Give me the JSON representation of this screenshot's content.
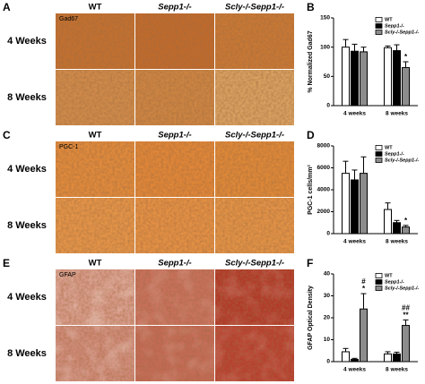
{
  "panels": [
    {
      "label": "A",
      "stain": "Gad67",
      "columns": [
        "WT",
        "Sepp1-/-",
        "Scly-/-Sepp1-/-"
      ],
      "rows": [
        "4 Weeks",
        "8 Weeks"
      ]
    },
    {
      "label": "C",
      "stain": "PGC-1",
      "columns": [
        "WT",
        "Sepp1-/-",
        "Scly-/-Sepp1-/-"
      ],
      "rows": [
        "4 Weeks",
        "8 Weeks"
      ]
    },
    {
      "label": "E",
      "stain": "GFAP",
      "columns": [
        "WT",
        "Sepp1-/-",
        "Scly-/-Sepp1-/-"
      ],
      "rows": [
        "4 Weeks",
        "8 Weeks"
      ]
    }
  ],
  "chart_data": [
    {
      "type": "bar",
      "panel_label": "B",
      "ylabel": "% Normalized Gad67",
      "categories": [
        "4 weeks",
        "8 weeks"
      ],
      "ylim": [
        0,
        150
      ],
      "yticks": [
        0,
        50,
        100,
        150
      ],
      "legend": "upper right",
      "series": [
        {
          "name": "WT",
          "color": "#ffffff",
          "values": [
            100,
            99
          ],
          "errors": [
            13,
            3
          ],
          "annotations": [
            null,
            null
          ]
        },
        {
          "name": "Sepp1-/-",
          "color": "#000000",
          "values": [
            93,
            94
          ],
          "errors": [
            12,
            10
          ],
          "annotations": [
            null,
            null
          ]
        },
        {
          "name": "Scly-/-Sepp1-/-",
          "color": "#8c8c8c",
          "values": [
            92,
            65
          ],
          "errors": [
            8,
            10
          ],
          "annotations": [
            null,
            [
              "*"
            ]
          ]
        }
      ]
    },
    {
      "type": "bar",
      "panel_label": "D",
      "ylabel": "PGC-1 cells/mm²",
      "categories": [
        "4 weeks",
        "8 weeks"
      ],
      "ylim": [
        0,
        8000
      ],
      "yticks": [
        0,
        2000,
        4000,
        6000,
        8000
      ],
      "legend": "upper right",
      "series": [
        {
          "name": "WT",
          "color": "#ffffff",
          "values": [
            5500,
            2200
          ],
          "errors": [
            1100,
            600
          ],
          "annotations": [
            null,
            null
          ]
        },
        {
          "name": "Sepp1-/-",
          "color": "#000000",
          "values": [
            4900,
            1000
          ],
          "errors": [
            900,
            200
          ],
          "annotations": [
            null,
            null
          ]
        },
        {
          "name": "Scly-/-Sepp1-/-",
          "color": "#8c8c8c",
          "values": [
            5500,
            600
          ],
          "errors": [
            1500,
            150
          ],
          "annotations": [
            null,
            [
              "*"
            ]
          ]
        }
      ]
    },
    {
      "type": "bar",
      "panel_label": "F",
      "ylabel": "GFAP Optical Density",
      "categories": [
        "4 weeks",
        "8 weeks"
      ],
      "ylim": [
        0,
        40
      ],
      "yticks": [
        0,
        10,
        20,
        30,
        40
      ],
      "legend": "upper right",
      "series": [
        {
          "name": "WT",
          "color": "#ffffff",
          "values": [
            4.5,
            3.5
          ],
          "errors": [
            1.5,
            1
          ],
          "annotations": [
            null,
            null
          ]
        },
        {
          "name": "Sepp1-/-",
          "color": "#000000",
          "values": [
            1,
            3.5
          ],
          "errors": [
            0.5,
            0.8
          ],
          "annotations": [
            null,
            null
          ]
        },
        {
          "name": "Scly-/-Sepp1-/-",
          "color": "#8c8c8c",
          "values": [
            24,
            16.5
          ],
          "errors": [
            7,
            2.5
          ],
          "annotations": [
            [
              "#",
              "*"
            ],
            [
              "##",
              "**"
            ]
          ]
        }
      ]
    }
  ]
}
